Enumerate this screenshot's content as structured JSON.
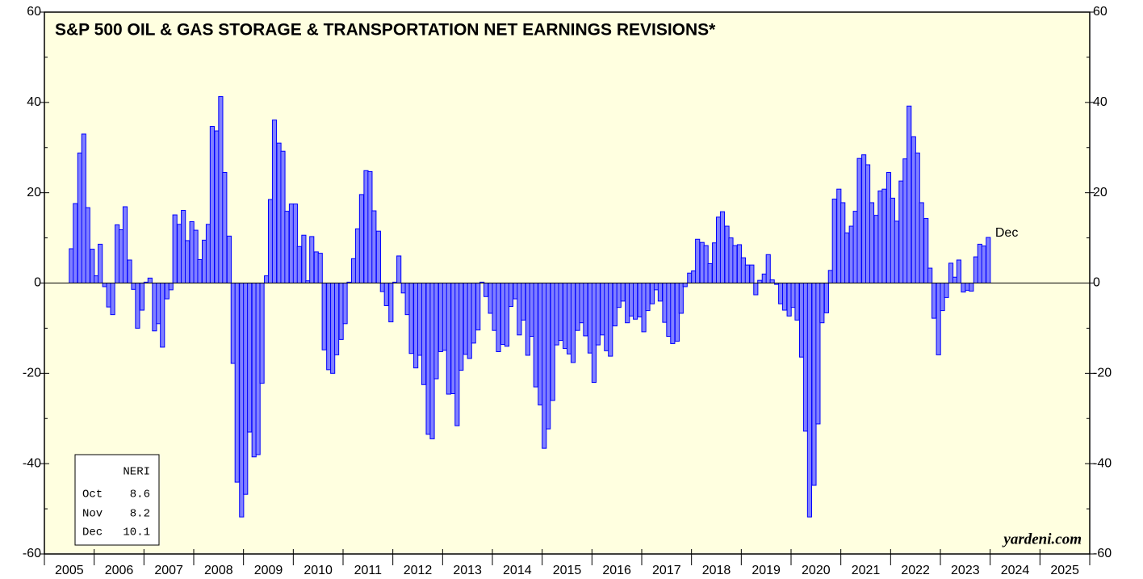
{
  "chart_data": {
    "type": "bar",
    "title": "S&P 500 OIL & GAS STORAGE & TRANSPORTATION NET EARNINGS REVISIONS*",
    "annotation": "Dec",
    "source": "yardeni.com",
    "color": "#8080ff",
    "edge_color": "#0000ff",
    "ylim": [
      -60,
      60
    ],
    "yticks": [
      -60,
      -40,
      -20,
      0,
      20,
      40,
      60
    ],
    "xlim": [
      2005,
      2026
    ],
    "xticks": [
      2005,
      2006,
      2007,
      2008,
      2009,
      2010,
      2011,
      2012,
      2013,
      2014,
      2015,
      2016,
      2017,
      2018,
      2019,
      2020,
      2021,
      2022,
      2023,
      2024,
      2025
    ],
    "x": [
      2005.5,
      2005.58,
      2005.67,
      2005.75,
      2005.83,
      2005.92,
      2006,
      2006.08,
      2006.17,
      2006.25,
      2006.33,
      2006.42,
      2006.5,
      2006.58,
      2006.67,
      2006.75,
      2006.83,
      2006.92,
      2007,
      2007.08,
      2007.17,
      2007.25,
      2007.33,
      2007.42,
      2007.5,
      2007.58,
      2007.67,
      2007.75,
      2007.83,
      2007.92,
      2008,
      2008.08,
      2008.17,
      2008.25,
      2008.33,
      2008.42,
      2008.5,
      2008.58,
      2008.67,
      2008.75,
      2008.83,
      2008.92,
      2009,
      2009.08,
      2009.17,
      2009.25,
      2009.33,
      2009.42,
      2009.5,
      2009.58,
      2009.67,
      2009.75,
      2009.83,
      2009.92,
      2010,
      2010.08,
      2010.17,
      2010.25,
      2010.33,
      2010.42,
      2010.5,
      2010.58,
      2010.67,
      2010.75,
      2010.83,
      2010.92,
      2011,
      2011.08,
      2011.17,
      2011.25,
      2011.33,
      2011.42,
      2011.5,
      2011.58,
      2011.67,
      2011.75,
      2011.83,
      2011.92,
      2012,
      2012.08,
      2012.17,
      2012.25,
      2012.33,
      2012.42,
      2012.5,
      2012.58,
      2012.67,
      2012.75,
      2012.83,
      2012.92,
      2013,
      2013.08,
      2013.17,
      2013.25,
      2013.33,
      2013.42,
      2013.5,
      2013.58,
      2013.67,
      2013.75,
      2013.83,
      2013.92,
      2014,
      2014.08,
      2014.17,
      2014.25,
      2014.33,
      2014.42,
      2014.5,
      2014.58,
      2014.67,
      2014.75,
      2014.83,
      2014.92,
      2015,
      2015.08,
      2015.17,
      2015.25,
      2015.33,
      2015.42,
      2015.5,
      2015.58,
      2015.67,
      2015.75,
      2015.83,
      2015.92,
      2016,
      2016.08,
      2016.17,
      2016.25,
      2016.33,
      2016.42,
      2016.5,
      2016.58,
      2016.67,
      2016.75,
      2016.83,
      2016.92,
      2017,
      2017.08,
      2017.17,
      2017.25,
      2017.33,
      2017.42,
      2017.5,
      2017.58,
      2017.67,
      2017.75,
      2017.83,
      2017.92,
      2018,
      2018.08,
      2018.17,
      2018.25,
      2018.33,
      2018.42,
      2018.5,
      2018.58,
      2018.67,
      2018.75,
      2018.83,
      2018.92,
      2019,
      2019.08,
      2019.17,
      2019.25,
      2019.33,
      2019.42,
      2019.5,
      2019.58,
      2019.67,
      2019.75,
      2019.83,
      2019.92,
      2020,
      2020.08,
      2020.17,
      2020.25,
      2020.33,
      2020.42,
      2020.5,
      2020.58,
      2020.67,
      2020.75,
      2020.83,
      2020.92,
      2021,
      2021.08,
      2021.17,
      2021.25,
      2021.33,
      2021.42,
      2021.5,
      2021.58,
      2021.67,
      2021.75,
      2021.83,
      2021.92,
      2022,
      2022.08,
      2022.17,
      2022.25,
      2022.33,
      2022.42,
      2022.5,
      2022.58,
      2022.67,
      2022.75,
      2022.83,
      2022.92,
      2023,
      2023.08,
      2023.17,
      2023.25,
      2023.33,
      2023.42,
      2023.5,
      2023.58,
      2023.67,
      2023.75,
      2023.83,
      2023.92
    ],
    "values": [
      7.6,
      17.6,
      28.8,
      33,
      16.7,
      7.5,
      1.6,
      8.6,
      -0.8,
      -5.3,
      -7,
      12.9,
      11.8,
      16.9,
      5.1,
      -1.4,
      -10,
      -6,
      0.2,
      1.1,
      -10.6,
      -9,
      -14.2,
      -3.5,
      -1.5,
      15.1,
      13,
      16.1,
      9.4,
      13.6,
      11.7,
      5.2,
      9.5,
      13,
      34.7,
      33.7,
      41.3,
      24.5,
      10.4,
      -17.8,
      -44.1,
      -51.8,
      -46.8,
      -33,
      -38.5,
      -38,
      -22.2,
      1.6,
      18.5,
      36.1,
      31,
      29.2,
      15.9,
      17.5,
      17.5,
      8.1,
      10.6,
      0.5,
      10.3,
      6.9,
      6.6,
      -14.8,
      -19.2,
      -20,
      -15.9,
      -12.5,
      -9,
      0.2,
      5.4,
      12,
      19.6,
      24.9,
      24.7,
      16,
      11.5,
      -1.9,
      -5,
      -8.6,
      0.2,
      6,
      -2.2,
      -7,
      -15.6,
      -18.8,
      -16,
      -22.5,
      -33.5,
      -34.5,
      -21.2,
      -15.2,
      -14.9,
      -24.6,
      -24.5,
      -31.6,
      -19.3,
      -15.8,
      -16.7,
      -13.3,
      -10.4,
      0.2,
      -3,
      -6.7,
      -10.5,
      -15.2,
      -13.6,
      -14,
      -5.2,
      -3.5,
      -11.5,
      -8.2,
      -16,
      -11.8,
      -23,
      -27,
      -36.6,
      -32.3,
      -26,
      -13.7,
      -12.7,
      -14.5,
      -15.7,
      -17.6,
      -10.5,
      -8.8,
      -11.7,
      -15.5,
      -22,
      -13.7,
      -11.5,
      -15,
      -16.2,
      -9.5,
      -5.4,
      -4,
      -8.8,
      -7.3,
      -8,
      -7.5,
      -10.8,
      -6.1,
      -4.6,
      -1.5,
      -4,
      -8.7,
      -11.8,
      -13.4,
      -12.9,
      -6.7,
      -0.8,
      2.2,
      2.7,
      9.7,
      9,
      8.3,
      4.3,
      8.9,
      14.6,
      15.8,
      12.6,
      10,
      8.3,
      8.5,
      5.6,
      4,
      4,
      -2.6,
      0.6,
      2,
      6.3,
      0.7,
      -0.3,
      -4.6,
      -6,
      -7.3,
      -5.4,
      -8.2,
      -16.4,
      -32.8,
      -51.8,
      -44.8,
      -31.2,
      -8.8,
      -6.6,
      2.8,
      18.6,
      20.8,
      17.8,
      11.1,
      12.6,
      15.9,
      27.6,
      28.4,
      26.2,
      17.8,
      15,
      20.4,
      20.8,
      24.5,
      18.8,
      13.7,
      22.6,
      27.5,
      39.2,
      32.4,
      28.8,
      17.8,
      14.3,
      3.3,
      -7.8,
      -15.9,
      -6.1,
      -3.2,
      4.4,
      1.3,
      5.1,
      -2,
      -1.6,
      -1.8,
      5.8,
      8.6,
      8.2,
      10.1
    ],
    "inset": {
      "header": "NERI",
      "rows": [
        [
          "Oct",
          8.6
        ],
        [
          "Nov",
          8.2
        ],
        [
          "Dec",
          10.1
        ]
      ]
    }
  }
}
